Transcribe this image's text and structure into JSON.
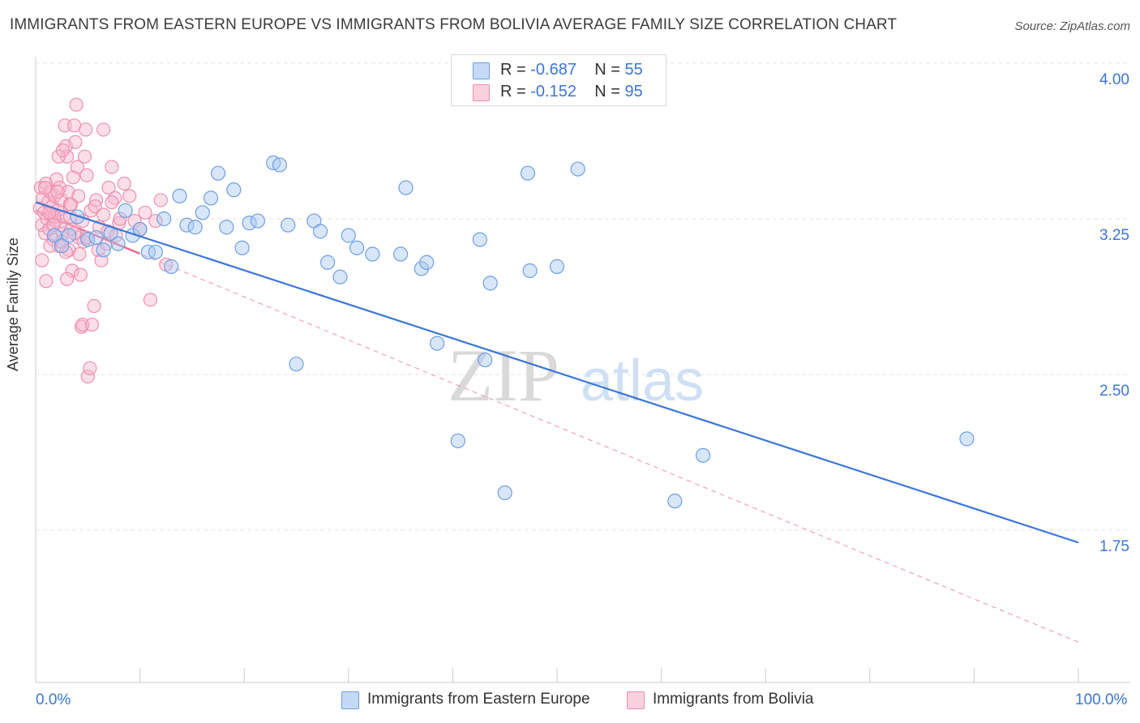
{
  "title": "IMMIGRANTS FROM EASTERN EUROPE VS IMMIGRANTS FROM BOLIVIA AVERAGE FAMILY SIZE CORRELATION CHART",
  "source": "Source: ZipAtlas.com",
  "watermark": {
    "zip": "ZIP",
    "atlas": "atlas"
  },
  "colors": {
    "blue": "#3a76d8",
    "blue_fill": "#a9c7f2",
    "blue_stroke": "#6d9fe6",
    "pink": "#e8688f",
    "pink_fill": "#f7b9cc",
    "pink_stroke": "#ee8fae",
    "grid": "#e3e3e3",
    "axis": "#cccccc",
    "tick_label": "#3a76d8"
  },
  "legend": {
    "blue": {
      "r_label": "R =",
      "r_value": "-0.687",
      "n_label": "N =",
      "n_value": "55"
    },
    "pink": {
      "r_label": "R =",
      "r_value": "-0.152",
      "n_label": "N =",
      "n_value": "95"
    }
  },
  "x_labels": {
    "left": "0.0%",
    "right": "100.0%"
  },
  "chart_data": {
    "type": "scatter",
    "title": "IMMIGRANTS FROM EASTERN EUROPE VS IMMIGRANTS FROM BOLIVIA AVERAGE FAMILY SIZE CORRELATION CHART",
    "xlabel": "",
    "ylabel": "Average Family Size",
    "xlim": [
      0,
      100
    ],
    "ylim": [
      1.0,
      4.2
    ],
    "y_ticks": [
      1.75,
      2.5,
      3.25,
      4.0
    ],
    "y_tick_labels": [
      "1.75",
      "2.50",
      "3.25",
      "4.00"
    ],
    "grid": true,
    "legend_position": "top-center",
    "series": [
      {
        "name": "Immigrants from Eastern Europe",
        "color": "#6d9fe6",
        "trend": {
          "x0": 0,
          "y0": 3.33,
          "x1": 100,
          "y1": 1.69,
          "style": "solid"
        },
        "points": [
          [
            1.8,
            3.17
          ],
          [
            2.5,
            3.12
          ],
          [
            3.2,
            3.17
          ],
          [
            4.0,
            3.26
          ],
          [
            5.0,
            3.15
          ],
          [
            5.8,
            3.16
          ],
          [
            6.5,
            3.1
          ],
          [
            7.2,
            3.18
          ],
          [
            7.9,
            3.13
          ],
          [
            8.6,
            3.29
          ],
          [
            9.3,
            3.17
          ],
          [
            10.0,
            3.2
          ],
          [
            10.8,
            3.09
          ],
          [
            11.5,
            3.09
          ],
          [
            12.3,
            3.25
          ],
          [
            13.0,
            3.02
          ],
          [
            13.8,
            3.36
          ],
          [
            14.5,
            3.22
          ],
          [
            15.3,
            3.21
          ],
          [
            16.0,
            3.28
          ],
          [
            16.8,
            3.35
          ],
          [
            17.5,
            3.47
          ],
          [
            18.3,
            3.21
          ],
          [
            19.0,
            3.39
          ],
          [
            19.8,
            3.11
          ],
          [
            20.5,
            3.23
          ],
          [
            21.3,
            3.24
          ],
          [
            22.8,
            3.52
          ],
          [
            23.4,
            3.51
          ],
          [
            24.2,
            3.22
          ],
          [
            25.0,
            2.55
          ],
          [
            26.7,
            3.24
          ],
          [
            27.3,
            3.19
          ],
          [
            28.0,
            3.04
          ],
          [
            29.2,
            2.97
          ],
          [
            30.0,
            3.17
          ],
          [
            30.8,
            3.11
          ],
          [
            32.3,
            3.08
          ],
          [
            35.0,
            3.08
          ],
          [
            35.5,
            3.4
          ],
          [
            37.0,
            3.01
          ],
          [
            37.5,
            3.04
          ],
          [
            38.5,
            2.65
          ],
          [
            40.5,
            2.18
          ],
          [
            42.6,
            3.15
          ],
          [
            43.1,
            2.57
          ],
          [
            43.6,
            2.94
          ],
          [
            45.0,
            1.93
          ],
          [
            47.4,
            3.0
          ],
          [
            47.2,
            3.47
          ],
          [
            50.0,
            3.02
          ],
          [
            52.0,
            3.49
          ],
          [
            61.3,
            1.89
          ],
          [
            64.0,
            2.11
          ],
          [
            89.3,
            2.19
          ]
        ]
      },
      {
        "name": "Immigrants from Bolivia",
        "color": "#ee8fae",
        "trend": {
          "x0": 0,
          "y0": 3.29,
          "x1": 100,
          "y1": 1.21,
          "style": "dashed",
          "solid_until": 10
        },
        "points": [
          [
            0.4,
            3.3
          ],
          [
            0.5,
            3.4
          ],
          [
            0.6,
            3.22
          ],
          [
            0.7,
            3.35
          ],
          [
            0.8,
            3.28
          ],
          [
            0.9,
            3.18
          ],
          [
            1.0,
            3.42
          ],
          [
            1.1,
            3.25
          ],
          [
            1.2,
            3.33
          ],
          [
            1.3,
            3.2
          ],
          [
            1.4,
            3.38
          ],
          [
            1.5,
            3.27
          ],
          [
            1.6,
            3.31
          ],
          [
            1.7,
            3.15
          ],
          [
            1.8,
            3.36
          ],
          [
            1.9,
            3.24
          ],
          [
            2.0,
            3.44
          ],
          [
            2.1,
            3.29
          ],
          [
            2.2,
            3.12
          ],
          [
            2.3,
            3.4
          ],
          [
            2.4,
            3.22
          ],
          [
            2.5,
            3.34
          ],
          [
            2.6,
            3.18
          ],
          [
            2.7,
            3.26
          ],
          [
            2.8,
            3.7
          ],
          [
            2.9,
            3.6
          ],
          [
            3.0,
            3.55
          ],
          [
            3.1,
            3.38
          ],
          [
            3.2,
            3.1
          ],
          [
            3.3,
            3.32
          ],
          [
            3.4,
            3.2
          ],
          [
            3.5,
            3.0
          ],
          [
            3.6,
            3.45
          ],
          [
            3.7,
            3.7
          ],
          [
            3.8,
            3.62
          ],
          [
            3.9,
            3.8
          ],
          [
            4.0,
            3.5
          ],
          [
            4.1,
            3.16
          ],
          [
            4.2,
            3.08
          ],
          [
            4.3,
            2.98
          ],
          [
            4.4,
            2.73
          ],
          [
            4.5,
            2.74
          ],
          [
            4.6,
            3.14
          ],
          [
            4.7,
            3.55
          ],
          [
            4.8,
            3.68
          ],
          [
            4.9,
            3.46
          ],
          [
            5.0,
            2.49
          ],
          [
            5.2,
            2.53
          ],
          [
            5.4,
            2.74
          ],
          [
            5.6,
            2.83
          ],
          [
            5.8,
            3.34
          ],
          [
            6.0,
            3.1
          ],
          [
            6.3,
            3.05
          ],
          [
            6.5,
            3.68
          ],
          [
            6.8,
            3.13
          ],
          [
            7.0,
            3.4
          ],
          [
            7.3,
            3.5
          ],
          [
            7.6,
            3.35
          ],
          [
            8.0,
            3.23
          ],
          [
            8.5,
            3.42
          ],
          [
            9.0,
            3.36
          ],
          [
            9.5,
            3.24
          ],
          [
            10.0,
            3.2
          ],
          [
            10.5,
            3.28
          ],
          [
            11.0,
            2.86
          ],
          [
            11.5,
            3.24
          ],
          [
            12.0,
            3.34
          ],
          [
            12.5,
            3.03
          ],
          [
            0.6,
            3.05
          ],
          [
            1.0,
            2.95
          ],
          [
            1.4,
            3.12
          ],
          [
            1.8,
            3.26
          ],
          [
            2.2,
            3.55
          ],
          [
            2.6,
            3.58
          ],
          [
            3.0,
            2.96
          ],
          [
            3.4,
            3.32
          ],
          [
            0.9,
            3.4
          ],
          [
            1.3,
            3.28
          ],
          [
            1.7,
            3.22
          ],
          [
            2.1,
            3.38
          ],
          [
            2.5,
            3.14
          ],
          [
            2.9,
            3.09
          ],
          [
            3.3,
            3.26
          ],
          [
            3.7,
            3.18
          ],
          [
            4.1,
            3.36
          ],
          [
            4.5,
            3.24
          ],
          [
            4.9,
            3.16
          ],
          [
            5.3,
            3.29
          ],
          [
            5.7,
            3.31
          ],
          [
            6.1,
            3.21
          ],
          [
            6.5,
            3.27
          ],
          [
            6.9,
            3.19
          ],
          [
            7.3,
            3.33
          ],
          [
            7.7,
            3.17
          ],
          [
            8.1,
            3.25
          ]
        ]
      }
    ]
  },
  "bottom_legend": {
    "blue": "Immigrants from Eastern Europe",
    "pink": "Immigrants from Bolivia"
  }
}
